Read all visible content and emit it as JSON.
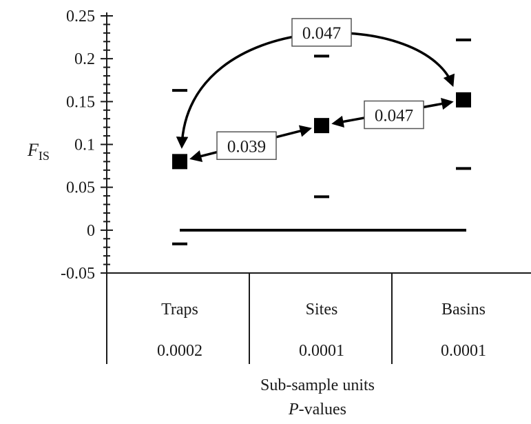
{
  "chart_data": {
    "type": "scatter",
    "ylabel_main": "F",
    "ylabel_sub": "IS",
    "xlabel_line1": "Sub-sample units",
    "xlabel_line2_italic": "P",
    "xlabel_line2_rest": "-values",
    "ylim": [
      -0.05,
      0.25
    ],
    "yticks": [
      "-0.05",
      "0",
      "0.05",
      "0.1",
      "0.15",
      "0.2",
      "0.25"
    ],
    "yticks_values": [
      -0.05,
      0,
      0.05,
      0.1,
      0.15,
      0.2,
      0.25
    ],
    "categories": [
      "Traps",
      "Sites",
      "Basins"
    ],
    "p_values": [
      "0.0002",
      "0.0001",
      "0.0001"
    ],
    "values": [
      0.08,
      0.122,
      0.152
    ],
    "upper": [
      0.163,
      0.203,
      0.222
    ],
    "lower": [
      -0.016,
      0.039,
      0.072
    ],
    "reference_line": 0,
    "annotations": [
      {
        "text": "0.047",
        "from": 0,
        "to": 2
      },
      {
        "text": "0.039",
        "from": 0,
        "to": 1
      },
      {
        "text": "0.047",
        "from": 1,
        "to": 2
      }
    ]
  }
}
